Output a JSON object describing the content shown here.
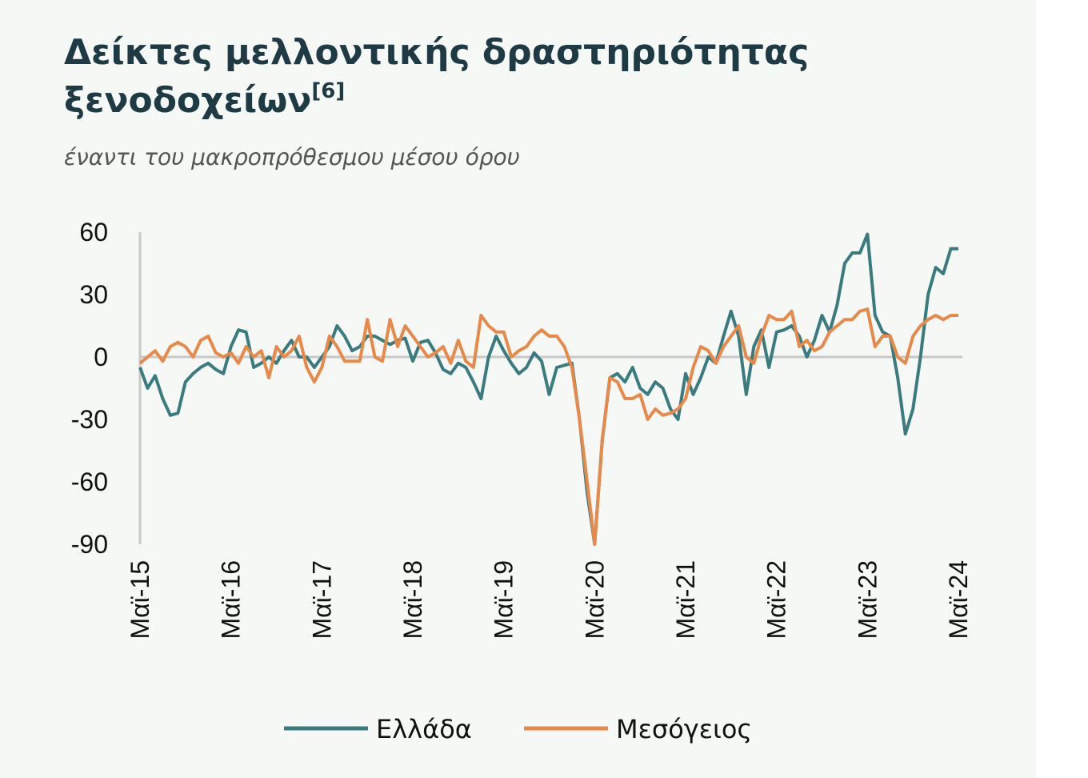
{
  "chart_data": {
    "type": "line",
    "title": "Δείκτες μελλοντικής δραστηριότητας ξενοδοχείων",
    "title_note": "[6]",
    "subtitle": "έναντι του μακροπρόθεσμου μέσου όρου",
    "categories": [
      "Μαϊ-15",
      null,
      null,
      null,
      null,
      null,
      null,
      null,
      null,
      null,
      null,
      null,
      "Μαϊ-16",
      null,
      null,
      null,
      null,
      null,
      null,
      null,
      null,
      null,
      null,
      null,
      "Μαϊ-17",
      null,
      null,
      null,
      null,
      null,
      null,
      null,
      null,
      null,
      null,
      null,
      "Μαϊ-18",
      null,
      null,
      null,
      null,
      null,
      null,
      null,
      null,
      null,
      null,
      null,
      "Μαϊ-19",
      null,
      null,
      null,
      null,
      null,
      null,
      null,
      null,
      null,
      null,
      null,
      "Μαϊ-20",
      null,
      null,
      null,
      null,
      null,
      null,
      null,
      null,
      null,
      null,
      null,
      "Μαϊ-21",
      null,
      null,
      null,
      null,
      null,
      null,
      null,
      null,
      null,
      null,
      null,
      "Μαϊ-22",
      null,
      null,
      null,
      null,
      null,
      null,
      null,
      null,
      null,
      null,
      null,
      "Μαϊ-23",
      null,
      null,
      null,
      null,
      null,
      null,
      null,
      null,
      null,
      null,
      null,
      "Μαϊ-24"
    ],
    "series": [
      {
        "name": "Ελλάδα",
        "color": "#3a7b80",
        "values": [
          -5,
          -15,
          -9,
          -20,
          -28,
          -27,
          -12,
          -8,
          -5,
          -3,
          -6,
          -8,
          5,
          13,
          12,
          -5,
          -3,
          0,
          -3,
          3,
          8,
          0,
          0,
          -5,
          0,
          5,
          15,
          10,
          3,
          5,
          10,
          10,
          8,
          6,
          8,
          9,
          -2,
          7,
          8,
          2,
          -6,
          -8,
          -3,
          -5,
          -12,
          -20,
          0,
          10,
          3,
          -3,
          -8,
          -5,
          2,
          -2,
          -18,
          -5,
          -4,
          -3,
          -30,
          -65,
          -90,
          -40,
          -10,
          -8,
          -12,
          -5,
          -15,
          -18,
          -12,
          -15,
          -25,
          -30,
          -8,
          -18,
          -10,
          0,
          -3,
          10,
          22,
          10,
          -18,
          5,
          13,
          -5,
          12,
          13,
          15,
          10,
          0,
          8,
          20,
          12,
          25,
          45,
          50,
          50,
          59,
          20,
          12,
          10,
          -10,
          -37,
          -25,
          0,
          30,
          43,
          40,
          52,
          52
        ]
      },
      {
        "name": "Μεσόγειος",
        "color": "#e8894a",
        "values": [
          -3,
          0,
          3,
          -2,
          5,
          7,
          5,
          0,
          8,
          10,
          2,
          0,
          2,
          -3,
          5,
          0,
          3,
          -10,
          5,
          0,
          3,
          10,
          -5,
          -12,
          -5,
          10,
          5,
          -2,
          -2,
          -2,
          18,
          0,
          -2,
          18,
          5,
          15,
          10,
          5,
          0,
          2,
          5,
          -3,
          8,
          -2,
          -5,
          20,
          15,
          12,
          12,
          0,
          3,
          5,
          10,
          13,
          10,
          10,
          5,
          -5,
          -30,
          -60,
          -90,
          -40,
          -10,
          -12,
          -20,
          -20,
          -18,
          -30,
          -25,
          -28,
          -27,
          -25,
          -20,
          -5,
          5,
          3,
          -3,
          5,
          10,
          15,
          0,
          -3,
          10,
          20,
          18,
          18,
          22,
          5,
          8,
          3,
          5,
          12,
          15,
          18,
          18,
          22,
          23,
          5,
          10,
          10,
          0,
          -3,
          10,
          15,
          18,
          20,
          18,
          20,
          20
        ]
      }
    ],
    "ylim": [
      -90,
      60
    ],
    "yticks": [
      60,
      30,
      0,
      -30,
      -60,
      -90
    ]
  }
}
